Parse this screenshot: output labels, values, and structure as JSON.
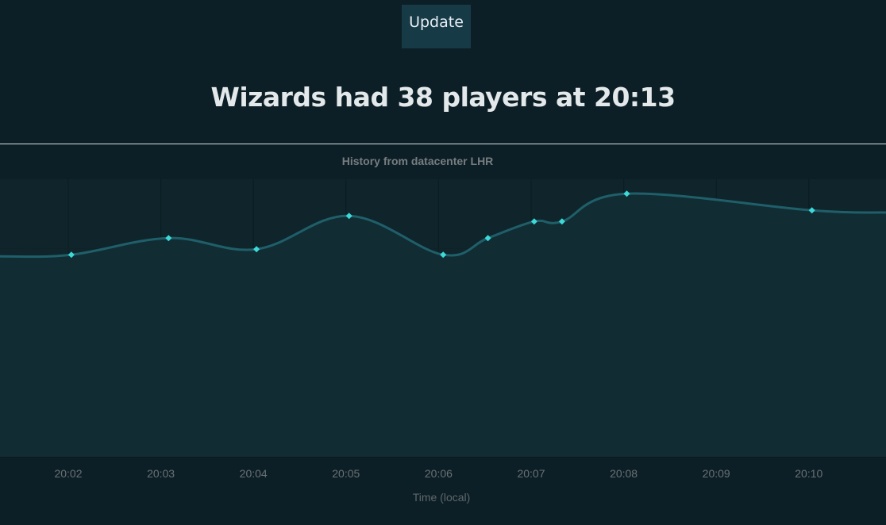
{
  "toolbar": {
    "update_label": "Update"
  },
  "headline": {
    "text": "Wizards had 38 players at 20:13"
  },
  "colors": {
    "background": "#0d1f26",
    "plot_background": "#112a31",
    "line": "#1f5f69",
    "marker": "#3dd9d9",
    "button": "#173a47"
  },
  "chart_data": {
    "type": "area",
    "title": "History from datacenter LHR",
    "xlabel": "Time (local)",
    "ylabel": "",
    "grid": true,
    "legend": "none",
    "ylim": [
      0,
      50
    ],
    "xticks": [
      "20:02",
      "20:03",
      "20:04",
      "20:05",
      "20:06",
      "20:07",
      "20:08",
      "20:09",
      "20:10"
    ],
    "series": [
      {
        "points": [
          {
            "x": "20:01:15",
            "y": 36.1
          },
          {
            "x": "20:02:02",
            "y": 36.4
          },
          {
            "x": "20:03:05",
            "y": 39.4
          },
          {
            "x": "20:04:02",
            "y": 37.4
          },
          {
            "x": "20:05:02",
            "y": 43.4
          },
          {
            "x": "20:06:03",
            "y": 36.4
          },
          {
            "x": "20:06:32",
            "y": 39.4
          },
          {
            "x": "20:07:02",
            "y": 42.4
          },
          {
            "x": "20:07:20",
            "y": 42.4
          },
          {
            "x": "20:08:02",
            "y": 47.4
          },
          {
            "x": "20:10:02",
            "y": 44.4
          },
          {
            "x": "20:10:50",
            "y": 44.0
          }
        ],
        "markers": [
          false,
          true,
          true,
          true,
          true,
          true,
          true,
          true,
          true,
          true,
          true,
          false
        ]
      }
    ]
  }
}
